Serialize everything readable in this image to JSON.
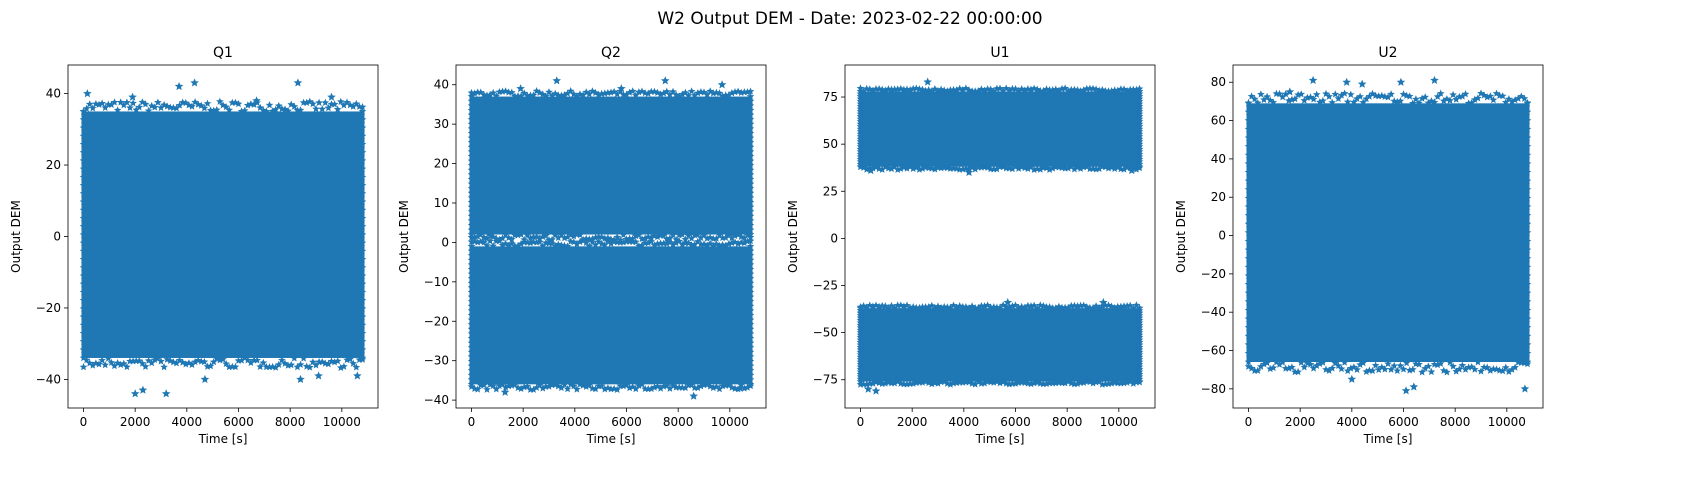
{
  "chart_data": {
    "suptitle": "W2 Output DEM - Date: 2023-02-22 00:00:00",
    "marker": "star",
    "color": "#1f77b4",
    "panels": [
      {
        "type": "scatter",
        "title": "Q1",
        "xlabel": "Time [s]",
        "ylabel": "Output DEM",
        "xlim": [
          -600,
          11400
        ],
        "ylim": [
          -48,
          48
        ],
        "xticks": [
          0,
          2000,
          4000,
          6000,
          8000,
          10000
        ],
        "yticks": [
          -40,
          -20,
          0,
          20,
          40
        ],
        "x_range": [
          0,
          10800
        ],
        "bands": [
          {
            "ymin": -34,
            "ymax": 35
          }
        ],
        "outliers": [
          [
            2000,
            -44
          ],
          [
            2300,
            -43
          ],
          [
            3200,
            -44
          ],
          [
            3700,
            42
          ],
          [
            4300,
            43
          ],
          [
            4700,
            -40
          ],
          [
            8300,
            43
          ],
          [
            8400,
            -40
          ],
          [
            9100,
            -39
          ],
          [
            10600,
            -39
          ],
          [
            150,
            40
          ],
          [
            1900,
            39
          ],
          [
            6700,
            38
          ],
          [
            9600,
            39
          ]
        ]
      },
      {
        "type": "scatter",
        "title": "Q2",
        "xlabel": "Time [s]",
        "ylabel": "Output DEM",
        "xlim": [
          -600,
          11400
        ],
        "ylim": [
          -42,
          45
        ],
        "xticks": [
          0,
          2000,
          4000,
          6000,
          8000,
          10000
        ],
        "yticks": [
          -40,
          -30,
          -20,
          -10,
          0,
          10,
          20,
          30,
          40
        ],
        "x_range": [
          0,
          10800
        ],
        "bands": [
          {
            "ymin": 2,
            "ymax": 37
          },
          {
            "ymin": -36,
            "ymax": -1
          }
        ],
        "outliers": [
          [
            3300,
            41
          ],
          [
            7500,
            41
          ],
          [
            9700,
            40
          ],
          [
            1300,
            -38
          ],
          [
            8600,
            -39
          ],
          [
            10400,
            -37
          ],
          [
            1900,
            39
          ],
          [
            5800,
            39
          ]
        ]
      },
      {
        "type": "scatter",
        "title": "U1",
        "xlabel": "Time [s]",
        "ylabel": "Output DEM",
        "xlim": [
          -600,
          11400
        ],
        "ylim": [
          -90,
          92
        ],
        "xticks": [
          0,
          2000,
          4000,
          6000,
          8000,
          10000
        ],
        "yticks": [
          -75,
          -50,
          -25,
          0,
          25,
          50,
          75
        ],
        "x_range": [
          0,
          10800
        ],
        "bands": [
          {
            "ymin": 38,
            "ymax": 78
          },
          {
            "ymin": -76,
            "ymax": -37
          }
        ],
        "outliers": [
          [
            2600,
            83
          ],
          [
            400,
            36
          ],
          [
            4200,
            35
          ],
          [
            10500,
            36
          ],
          [
            300,
            -80
          ],
          [
            600,
            -81
          ],
          [
            5700,
            -34
          ],
          [
            9400,
            -34
          ]
        ]
      },
      {
        "type": "scatter",
        "title": "U2",
        "xlabel": "Time [s]",
        "ylabel": "Output DEM",
        "xlim": [
          -600,
          11400
        ],
        "ylim": [
          -90,
          89
        ],
        "xticks": [
          0,
          2000,
          4000,
          6000,
          8000,
          10000
        ],
        "yticks": [
          -80,
          -60,
          -40,
          -20,
          0,
          20,
          40,
          60,
          80
        ],
        "x_range": [
          0,
          10800
        ],
        "bands": [
          {
            "ymin": -66,
            "ymax": 69
          }
        ],
        "outliers": [
          [
            2500,
            81
          ],
          [
            3800,
            80
          ],
          [
            4400,
            79
          ],
          [
            5900,
            80
          ],
          [
            7200,
            81
          ],
          [
            6100,
            -81
          ],
          [
            6400,
            -79
          ],
          [
            10700,
            -80
          ],
          [
            1600,
            75
          ],
          [
            4000,
            -75
          ]
        ]
      }
    ]
  }
}
